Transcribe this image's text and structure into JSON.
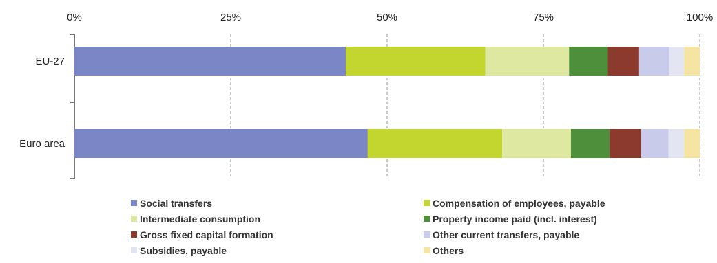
{
  "chart_data": {
    "type": "bar",
    "orientation": "horizontal",
    "stacked": true,
    "normalized": true,
    "title": "",
    "xlabel": "",
    "ylabel": "",
    "xlim": [
      0,
      100
    ],
    "x_ticks": [
      "0%",
      "25%",
      "50%",
      "75%",
      "100%"
    ],
    "grid": "vertical dashed",
    "legend_position": "bottom",
    "categories": [
      "EU-27",
      "Euro area"
    ],
    "series": [
      {
        "name": "Social transfers",
        "color": "#7b86c6",
        "values": [
          43.4,
          46.9
        ]
      },
      {
        "name": "Compensation of employees, payable",
        "color": "#c3d62f",
        "values": [
          22.3,
          21.5
        ]
      },
      {
        "name": "Intermediate consumption",
        "color": "#dfe8a1",
        "values": [
          13.4,
          11.0
        ]
      },
      {
        "name": "Property income paid (incl. interest)",
        "color": "#4e8f3c",
        "values": [
          6.2,
          6.2
        ]
      },
      {
        "name": "Gross fixed capital formation",
        "color": "#8c3a2e",
        "values": [
          5.0,
          5.0
        ]
      },
      {
        "name": "Other current transfers, payable",
        "color": "#c8cbe9",
        "values": [
          4.8,
          4.4
        ]
      },
      {
        "name": "Subsidies, payable",
        "color": "#e4e5f3",
        "values": [
          2.4,
          2.5
        ]
      },
      {
        "name": "Others",
        "color": "#f6e4a3",
        "values": [
          2.5,
          2.5
        ]
      }
    ]
  }
}
